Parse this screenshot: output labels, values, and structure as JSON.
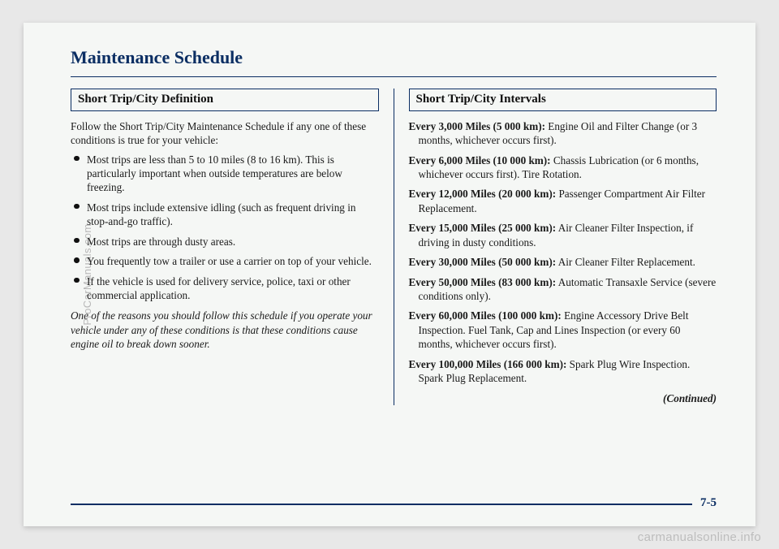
{
  "title": "Maintenance Schedule",
  "left": {
    "heading": "Short Trip/City Definition",
    "intro": "Follow the Short Trip/City Maintenance Schedule if any one of these conditions is true for your vehicle:",
    "conditions": [
      "Most trips are less than 5 to 10 miles (8 to 16 km). This is particularly important when outside temperatures are below freezing.",
      "Most trips include extensive idling (such as frequent driving in stop-and-go traffic).",
      "Most trips are through dusty areas.",
      "You frequently tow a trailer or use a carrier on top of your vehicle.",
      "If the vehicle is used for delivery service, police, taxi or other commercial application."
    ],
    "note": "One of the reasons you should follow this schedule if you operate your vehicle under any of these conditions is that these conditions cause engine oil to break down sooner."
  },
  "right": {
    "heading": "Short Trip/City Intervals",
    "intervals": [
      {
        "label": "Every 3,000 Miles (5 000 km):",
        "text": " Engine Oil and Filter Change (or 3 months, whichever occurs first)."
      },
      {
        "label": "Every 6,000 Miles (10 000 km):",
        "text": " Chassis Lubrication (or 6 months, whichever occurs first). Tire Rotation."
      },
      {
        "label": "Every 12,000 Miles (20 000 km):",
        "text": " Passenger Compartment Air Filter Replacement."
      },
      {
        "label": "Every 15,000 Miles (25 000 km):",
        "text": " Air Cleaner Filter Inspection, if driving in dusty conditions."
      },
      {
        "label": "Every 30,000 Miles (50 000 km):",
        "text": " Air Cleaner Filter Replacement."
      },
      {
        "label": "Every 50,000 Miles (83 000 km):",
        "text": " Automatic Transaxle Service (severe conditions only)."
      },
      {
        "label": "Every 60,000 Miles (100 000 km):",
        "text": " Engine Accessory Drive Belt Inspection. Fuel Tank, Cap and Lines Inspection (or every 60 months, whichever occurs first)."
      },
      {
        "label": "Every 100,000 Miles (166 000 km):",
        "text": " Spark Plug Wire Inspection. Spark Plug Replacement."
      }
    ],
    "continued": "(Continued)"
  },
  "page_number": "7-5",
  "watermark_left": "ProCarManuals.com",
  "watermark_bottom": "carmanualsonline.info",
  "colors": {
    "heading": "#0b2e63",
    "text": "#1a1a1a",
    "page_bg": "#f5f7f5",
    "outer_bg": "#e8e8e8",
    "watermark": "#bdbdbd"
  },
  "fonts": {
    "body_family": "Times New Roman",
    "title_size_pt": 17,
    "body_size_pt": 10,
    "heading_size_pt": 11
  }
}
